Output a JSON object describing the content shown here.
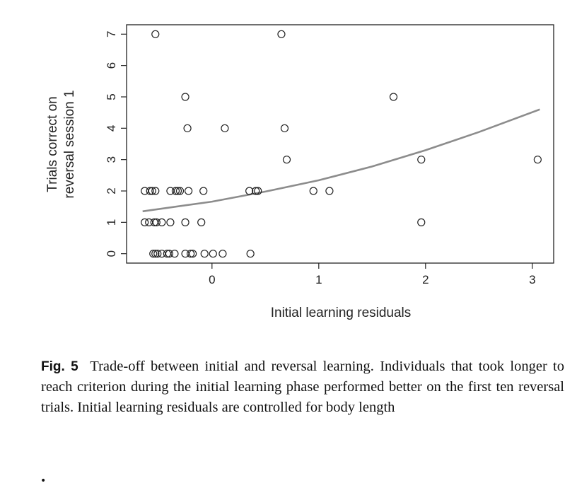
{
  "chart_data": {
    "type": "scatter",
    "xlabel": "Initial learning residuals",
    "ylabel_lines": [
      "Trials correct on",
      "reversal session 1"
    ],
    "xlim": [
      -0.8,
      3.2
    ],
    "ylim": [
      -0.3,
      7.3
    ],
    "x_ticks": [
      0,
      1,
      2,
      3
    ],
    "y_ticks": [
      0,
      1,
      2,
      3,
      4,
      5,
      6,
      7
    ],
    "grid": false,
    "points": [
      {
        "x": -0.53,
        "y": 7
      },
      {
        "x": 0.65,
        "y": 7
      },
      {
        "x": -0.25,
        "y": 5
      },
      {
        "x": 1.7,
        "y": 5
      },
      {
        "x": -0.23,
        "y": 4
      },
      {
        "x": 0.12,
        "y": 4
      },
      {
        "x": 0.68,
        "y": 4
      },
      {
        "x": 0.7,
        "y": 3
      },
      {
        "x": 1.96,
        "y": 3
      },
      {
        "x": 3.05,
        "y": 3
      },
      {
        "x": -0.63,
        "y": 2
      },
      {
        "x": -0.58,
        "y": 2
      },
      {
        "x": -0.56,
        "y": 2
      },
      {
        "x": -0.53,
        "y": 2
      },
      {
        "x": -0.39,
        "y": 2
      },
      {
        "x": -0.34,
        "y": 2
      },
      {
        "x": -0.32,
        "y": 2
      },
      {
        "x": -0.3,
        "y": 2
      },
      {
        "x": -0.22,
        "y": 2
      },
      {
        "x": -0.08,
        "y": 2
      },
      {
        "x": 0.35,
        "y": 2
      },
      {
        "x": 0.41,
        "y": 2
      },
      {
        "x": 0.43,
        "y": 2
      },
      {
        "x": 0.95,
        "y": 2
      },
      {
        "x": 1.1,
        "y": 2
      },
      {
        "x": -0.63,
        "y": 1
      },
      {
        "x": -0.59,
        "y": 1
      },
      {
        "x": -0.54,
        "y": 1
      },
      {
        "x": -0.52,
        "y": 1
      },
      {
        "x": -0.47,
        "y": 1
      },
      {
        "x": -0.39,
        "y": 1
      },
      {
        "x": -0.25,
        "y": 1
      },
      {
        "x": -0.1,
        "y": 1
      },
      {
        "x": 1.96,
        "y": 1
      },
      {
        "x": -0.55,
        "y": 0
      },
      {
        "x": -0.53,
        "y": 0
      },
      {
        "x": -0.51,
        "y": 0
      },
      {
        "x": -0.47,
        "y": 0
      },
      {
        "x": -0.42,
        "y": 0
      },
      {
        "x": -0.4,
        "y": 0
      },
      {
        "x": -0.35,
        "y": 0
      },
      {
        "x": -0.25,
        "y": 0
      },
      {
        "x": -0.2,
        "y": 0
      },
      {
        "x": -0.18,
        "y": 0
      },
      {
        "x": -0.07,
        "y": 0
      },
      {
        "x": 0.01,
        "y": 0
      },
      {
        "x": 0.1,
        "y": 0
      },
      {
        "x": 0.36,
        "y": 0
      }
    ],
    "fit_line": {
      "x": [
        -0.65,
        0,
        0.5,
        1,
        1.5,
        2,
        2.5,
        3.07
      ],
      "y": [
        1.35,
        1.66,
        1.98,
        2.34,
        2.78,
        3.3,
        3.88,
        4.6
      ]
    }
  },
  "caption": {
    "label": "Fig. 5",
    "text": "Trade-off between initial and reversal learning. Individuals that took longer to reach criterion during the initial learning phase performed better on the first ten reversal trials. Initial learning residuals are controlled for body length"
  },
  "footer_mark": "•"
}
